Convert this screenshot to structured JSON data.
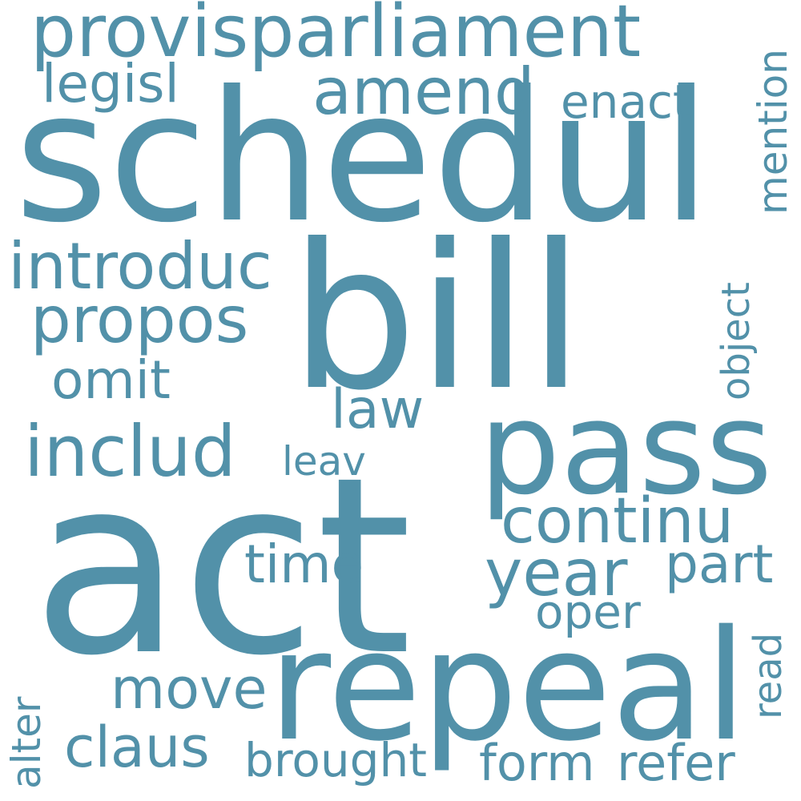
{
  "color": "#5291a9",
  "words": {
    "act": "act",
    "schedul": "schedul",
    "bill": "bill",
    "pass": "pass",
    "repeal": "repeal",
    "provisparliament": "provisparliament",
    "amend": "amend",
    "legisl": "legisl",
    "enact": "enact",
    "mention": "mention",
    "introduc": "introduc",
    "propos": "propos",
    "object": "object",
    "omit": "omit",
    "law": "law",
    "includ": "includ",
    "leav": "leav",
    "continu": "continu",
    "time": "time",
    "year": "year",
    "part": "part",
    "oper": "oper",
    "move": "move",
    "read": "read",
    "alter": "alter",
    "claus": "claus",
    "brought": "brought",
    "form": "form",
    "refer": "refer"
  }
}
